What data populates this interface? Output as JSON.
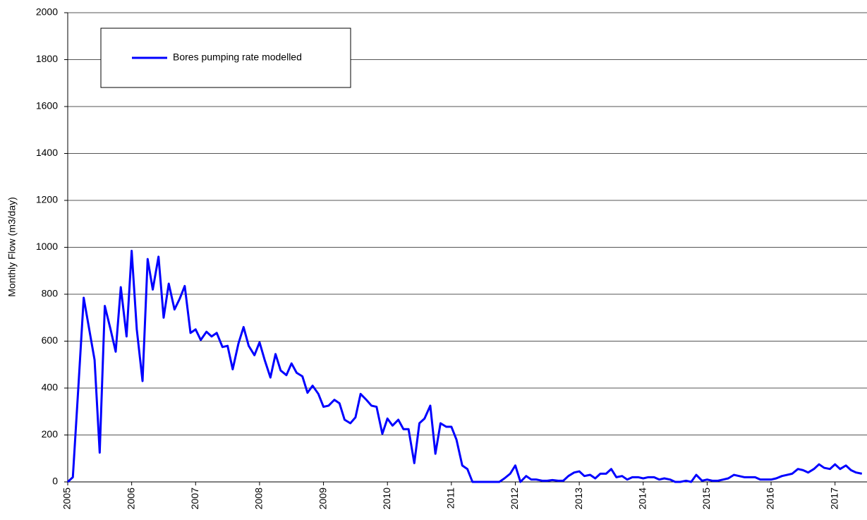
{
  "chart_data": {
    "type": "line",
    "ylabel": "Monthly Flow (m3/day)",
    "x": [
      2005,
      2005.08,
      2005.17,
      2005.25,
      2005.33,
      2005.42,
      2005.5,
      2005.58,
      2005.67,
      2005.75,
      2005.83,
      2005.92,
      2006,
      2006.08,
      2006.17,
      2006.25,
      2006.33,
      2006.42,
      2006.5,
      2006.58,
      2006.67,
      2006.75,
      2006.83,
      2006.92,
      2007,
      2007.08,
      2007.17,
      2007.25,
      2007.33,
      2007.42,
      2007.5,
      2007.58,
      2007.67,
      2007.75,
      2007.83,
      2007.92,
      2008,
      2008.08,
      2008.17,
      2008.25,
      2008.33,
      2008.42,
      2008.5,
      2008.58,
      2008.67,
      2008.75,
      2008.83,
      2008.92,
      2009,
      2009.08,
      2009.17,
      2009.25,
      2009.33,
      2009.42,
      2009.5,
      2009.58,
      2009.67,
      2009.75,
      2009.83,
      2009.92,
      2010,
      2010.08,
      2010.17,
      2010.25,
      2010.33,
      2010.42,
      2010.5,
      2010.58,
      2010.67,
      2010.75,
      2010.83,
      2010.92,
      2011,
      2011.08,
      2011.17,
      2011.25,
      2011.33,
      2011.42,
      2011.5,
      2011.58,
      2011.67,
      2011.75,
      2011.83,
      2011.92,
      2012,
      2012.08,
      2012.17,
      2012.25,
      2012.33,
      2012.42,
      2012.5,
      2012.58,
      2012.67,
      2012.75,
      2012.83,
      2012.92,
      2013,
      2013.08,
      2013.17,
      2013.25,
      2013.33,
      2013.42,
      2013.5,
      2013.58,
      2013.67,
      2013.75,
      2013.83,
      2013.92,
      2014,
      2014.08,
      2014.17,
      2014.25,
      2014.33,
      2014.42,
      2014.5,
      2014.58,
      2014.67,
      2014.75,
      2014.83,
      2014.92,
      2015,
      2015.08,
      2015.17,
      2015.25,
      2015.33,
      2015.42,
      2015.5,
      2015.58,
      2015.67,
      2015.75,
      2015.83,
      2015.92,
      2016,
      2016.08,
      2016.17,
      2016.25,
      2016.33,
      2016.42,
      2016.5,
      2016.58,
      2016.67,
      2016.75,
      2016.83,
      2016.92,
      2017,
      2017.08,
      2017.17,
      2017.25,
      2017.33,
      2017.42
    ],
    "series": [
      {
        "name": "Bores pumping rate modelled",
        "color": "#0000ff",
        "values": [
          0,
          20,
          420,
          785,
          660,
          520,
          125,
          750,
          650,
          555,
          830,
          620,
          985,
          650,
          430,
          950,
          820,
          960,
          700,
          845,
          735,
          780,
          835,
          635,
          650,
          605,
          640,
          620,
          635,
          575,
          580,
          480,
          590,
          660,
          580,
          540,
          595,
          520,
          445,
          545,
          475,
          455,
          505,
          465,
          450,
          380,
          410,
          375,
          320,
          325,
          350,
          335,
          265,
          250,
          275,
          375,
          350,
          325,
          320,
          205,
          270,
          240,
          265,
          225,
          225,
          80,
          250,
          270,
          325,
          120,
          250,
          235,
          235,
          180,
          70,
          55,
          0,
          0,
          0,
          0,
          0,
          0,
          15,
          35,
          70,
          0,
          25,
          10,
          10,
          5,
          5,
          8,
          5,
          5,
          25,
          40,
          45,
          25,
          30,
          15,
          35,
          35,
          55,
          20,
          25,
          10,
          20,
          20,
          15,
          20,
          20,
          10,
          15,
          10,
          0,
          0,
          5,
          0,
          30,
          5,
          10,
          5,
          5,
          10,
          15,
          30,
          25,
          20,
          20,
          20,
          10,
          10,
          10,
          15,
          25,
          30,
          35,
          55,
          50,
          40,
          55,
          75,
          60,
          55,
          75,
          55,
          70,
          50,
          40,
          35
        ]
      }
    ],
    "xlim": [
      2005,
      2017.5
    ],
    "xticks": [
      2005,
      2006,
      2007,
      2008,
      2009,
      2010,
      2011,
      2012,
      2013,
      2014,
      2015,
      2016,
      2017
    ],
    "ylim": [
      0,
      2000
    ],
    "yticks": [
      0,
      200,
      400,
      600,
      800,
      1000,
      1200,
      1400,
      1600,
      1800,
      2000
    ],
    "grid": true,
    "legend": "upper left"
  }
}
